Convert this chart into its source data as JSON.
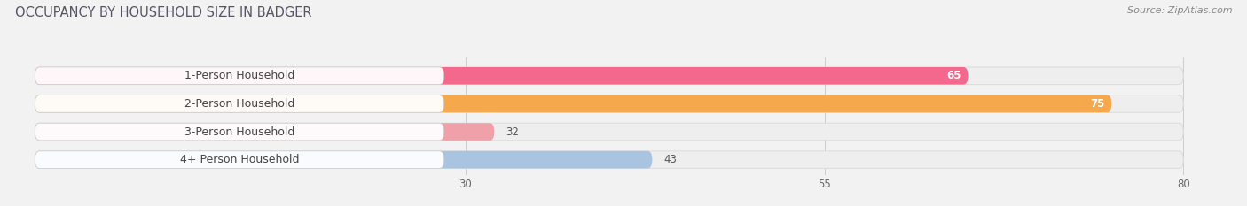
{
  "title": "OCCUPANCY BY HOUSEHOLD SIZE IN BADGER",
  "source": "Source: ZipAtlas.com",
  "categories": [
    "1-Person Household",
    "2-Person Household",
    "3-Person Household",
    "4+ Person Household"
  ],
  "values": [
    65,
    75,
    32,
    43
  ],
  "bar_colors": [
    "#f4688e",
    "#f5a84c",
    "#f0a0a8",
    "#a8c4e0"
  ],
  "xlim_min": 0,
  "xlim_max": 82,
  "data_min": 0,
  "data_max": 80,
  "xticks": [
    30,
    55,
    80
  ],
  "background_color": "#ffffff",
  "fig_background": "#f2f2f2",
  "bar_bg_color": "#eeeeee",
  "bar_border_color": "#dddddd",
  "title_fontsize": 10.5,
  "source_fontsize": 8,
  "label_fontsize": 9,
  "value_fontsize": 8.5
}
